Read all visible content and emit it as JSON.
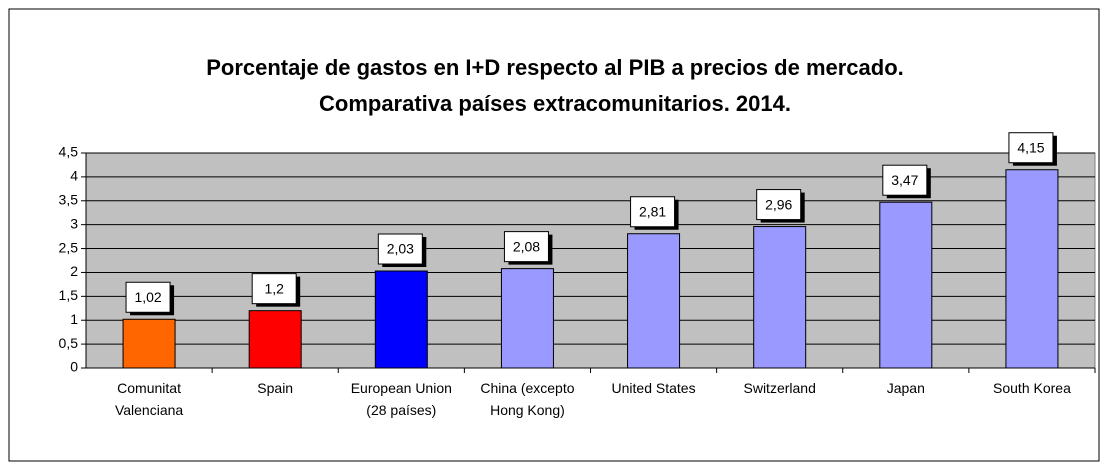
{
  "chart_data": {
    "type": "bar",
    "title": "Porcentaje de gastos en I+D respecto al PIB a precios de mercado.",
    "subtitle": "Comparativa países extracomunitarios. 2014.",
    "categories": [
      "Comunitat Valenciana",
      "Spain",
      "European Union (28 países)",
      "China (excepto Hong Kong)",
      "United States",
      "Switzerland",
      "Japan",
      "South Korea"
    ],
    "values": [
      1.02,
      1.2,
      2.03,
      2.08,
      2.81,
      2.96,
      3.47,
      4.15
    ],
    "value_labels": [
      "1,02",
      "1,2",
      "2,03",
      "2,08",
      "2,81",
      "2,96",
      "3,47",
      "4,15"
    ],
    "colors": [
      "#ff6600",
      "#ff0000",
      "#0000ff",
      "#9999ff",
      "#9999ff",
      "#9999ff",
      "#9999ff",
      "#9999ff"
    ],
    "ylim": [
      0,
      4.5
    ],
    "yticks": [
      0,
      {
        "value": 0.5,
        "label": "0,5"
      },
      1,
      {
        "value": 1.5,
        "label": "1,5"
      },
      2,
      {
        "value": 2.5,
        "label": "2,5"
      },
      3,
      {
        "value": 3.5,
        "label": "3,5"
      },
      4,
      {
        "value": 4.5,
        "label": "4,5"
      }
    ],
    "grid": true
  }
}
